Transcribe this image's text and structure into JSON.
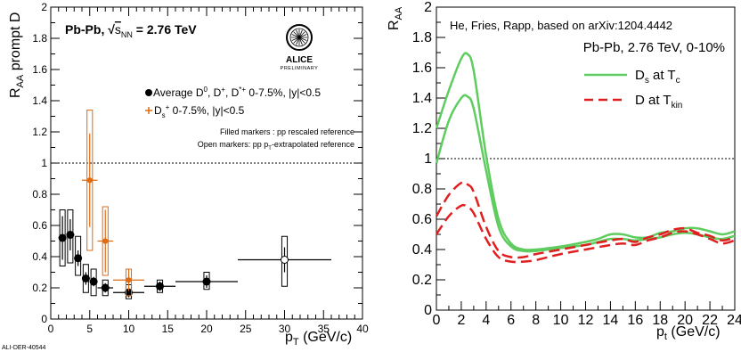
{
  "footer_id": "ALI-DER-40544",
  "chart_data": [
    {
      "type": "scatter",
      "ylabel": "R_AA prompt D",
      "xlabel": "p_T (GeV/c)",
      "xlim": [
        0,
        40
      ],
      "ylim": [
        0,
        2
      ],
      "xticks": [
        "0",
        "5",
        "10",
        "15",
        "20",
        "25",
        "30",
        "35",
        "40"
      ],
      "yticks": [
        "0",
        "0.2",
        "0.4",
        "0.6",
        "0.8",
        "1",
        "1.2",
        "1.4",
        "1.6",
        "1.8",
        "2"
      ],
      "system_label": "Pb-Pb, √s_NN = 2.76 TeV",
      "logo_text": [
        "ALICE",
        "PRELIMINARY"
      ],
      "legend": [
        "Average D⁰, D⁺, D*⁺ 0-7.5%, |y|<0.5",
        "D_s⁺ 0-7.5%, |y|<0.5"
      ],
      "notes": [
        "Filled markers : pp rescaled reference",
        "Open markers: pp pT-extrapolated reference"
      ],
      "reference_line": 1,
      "series": [
        {
          "name": "Average D⁰, D⁺, D*⁺ 0-7.5%, |y|<0.5",
          "color": "#000000",
          "points": [
            {
              "x": 1.5,
              "y": 0.52,
              "xerr": 0.5,
              "yerr": 0.14,
              "sys": [
                0.34,
                0.7
              ],
              "open": false
            },
            {
              "x": 2.5,
              "y": 0.54,
              "xerr": 0.5,
              "yerr": 0.1,
              "sys": [
                0.36,
                0.7
              ],
              "open": false
            },
            {
              "x": 3.5,
              "y": 0.39,
              "xerr": 0.5,
              "yerr": 0.05,
              "sys": [
                0.28,
                0.53
              ],
              "open": false
            },
            {
              "x": 4.5,
              "y": 0.26,
              "xerr": 0.5,
              "yerr": 0.04,
              "sys": [
                0.17,
                0.35
              ],
              "open": false
            },
            {
              "x": 5.5,
              "y": 0.24,
              "xerr": 0.5,
              "yerr": 0.03,
              "sys": [
                0.15,
                0.32
              ],
              "open": false
            },
            {
              "x": 7,
              "y": 0.2,
              "xerr": 1,
              "yerr": 0.03,
              "sys": [
                0.15,
                0.25
              ],
              "open": false
            },
            {
              "x": 10,
              "y": 0.17,
              "xerr": 2,
              "yerr": 0.03,
              "sys": [
                0.13,
                0.22
              ],
              "open": false
            },
            {
              "x": 14,
              "y": 0.21,
              "xerr": 2,
              "yerr": 0.03,
              "sys": [
                0.17,
                0.25
              ],
              "open": false
            },
            {
              "x": 20,
              "y": 0.24,
              "xerr": 4,
              "yerr": 0.04,
              "sys": [
                0.19,
                0.3
              ],
              "open": false
            },
            {
              "x": 30,
              "y": 0.38,
              "xerr": 6,
              "yerr": 0.08,
              "sys": [
                0.21,
                0.53
              ],
              "open": true
            }
          ]
        },
        {
          "name": "D_s⁺ 0-7.5%, |y|<0.5",
          "color": "#e06a10",
          "points": [
            {
              "x": 5,
              "y": 0.89,
              "xerr": 1,
              "yerr": 0.3,
              "sys": [
                0.44,
                1.34
              ],
              "open": false
            },
            {
              "x": 7,
              "y": 0.5,
              "xerr": 1,
              "yerr": 0.2,
              "sys": [
                0.28,
                0.72
              ],
              "open": false
            },
            {
              "x": 10,
              "y": 0.25,
              "xerr": 2,
              "yerr": 0.07,
              "sys": [
                0.15,
                0.32
              ],
              "open": false
            }
          ]
        }
      ]
    },
    {
      "type": "line",
      "ylabel": "R_AA",
      "xlabel": "p_t (GeV/c)",
      "xlim": [
        0,
        24
      ],
      "ylim": [
        0,
        2
      ],
      "xticks": [
        "0",
        "2",
        "4",
        "6",
        "8",
        "10",
        "12",
        "14",
        "16",
        "18",
        "20",
        "22",
        "24"
      ],
      "yticks": [
        "0",
        "0.2",
        "0.4",
        "0.6",
        "0.8",
        "1",
        "1.2",
        "1.4",
        "1.6",
        "1.8",
        "2"
      ],
      "title": "He, Fries, Rapp, based on arXiv:1204.4442",
      "subtitle": "Pb-Pb, 2.76 TeV, 0-10%",
      "reference_line": 1,
      "series": [
        {
          "name": "D_s at T_c",
          "color": "#5fcc5f",
          "dash": false,
          "x": [
            0,
            1,
            2,
            2.5,
            3,
            4,
            5,
            6,
            7,
            8,
            10,
            12,
            13,
            14,
            15,
            16,
            17,
            18,
            19,
            20,
            21,
            22,
            23,
            24
          ],
          "y": [
            1.2,
            1.45,
            1.66,
            1.69,
            1.58,
            1.02,
            0.6,
            0.44,
            0.4,
            0.4,
            0.42,
            0.45,
            0.47,
            0.5,
            0.5,
            0.48,
            0.48,
            0.51,
            0.52,
            0.54,
            0.54,
            0.52,
            0.5,
            0.52
          ]
        },
        {
          "name": "D_s at T_c",
          "color": "#5fcc5f",
          "dash": false,
          "x": [
            0,
            1,
            2,
            2.5,
            3,
            4,
            5,
            6,
            7,
            8,
            10,
            12,
            13,
            14,
            15,
            16,
            17,
            18,
            19,
            20,
            21,
            22,
            23,
            24
          ],
          "y": [
            0.97,
            1.25,
            1.4,
            1.41,
            1.33,
            0.92,
            0.55,
            0.42,
            0.39,
            0.39,
            0.41,
            0.43,
            0.45,
            0.47,
            0.47,
            0.46,
            0.47,
            0.48,
            0.5,
            0.51,
            0.5,
            0.48,
            0.47,
            0.49
          ]
        },
        {
          "name": "D at T_kin",
          "color": "#e02020",
          "dash": true,
          "x": [
            0,
            1,
            2,
            2.5,
            3,
            4,
            5,
            6,
            7,
            8,
            10,
            12,
            14,
            15,
            16,
            17,
            18,
            19,
            20,
            21,
            22,
            23,
            24
          ],
          "y": [
            0.62,
            0.76,
            0.84,
            0.83,
            0.78,
            0.55,
            0.39,
            0.35,
            0.35,
            0.37,
            0.4,
            0.43,
            0.46,
            0.47,
            0.45,
            0.48,
            0.5,
            0.53,
            0.54,
            0.51,
            0.49,
            0.46,
            0.48
          ]
        },
        {
          "name": "D at T_kin",
          "color": "#e02020",
          "dash": true,
          "x": [
            0,
            1,
            2,
            2.5,
            3,
            4,
            5,
            6,
            7,
            8,
            10,
            12,
            14,
            15,
            16,
            17,
            18,
            19,
            20,
            21,
            22,
            23,
            24
          ],
          "y": [
            0.5,
            0.62,
            0.69,
            0.68,
            0.64,
            0.47,
            0.35,
            0.32,
            0.32,
            0.33,
            0.37,
            0.4,
            0.43,
            0.44,
            0.43,
            0.46,
            0.48,
            0.51,
            0.52,
            0.5,
            0.47,
            0.44,
            0.46
          ]
        }
      ],
      "legend": [
        {
          "label": "D_s at T_c",
          "color": "#5fcc5f",
          "dash": false
        },
        {
          "label": "D at T_kin",
          "color": "#e02020",
          "dash": true
        }
      ]
    }
  ]
}
